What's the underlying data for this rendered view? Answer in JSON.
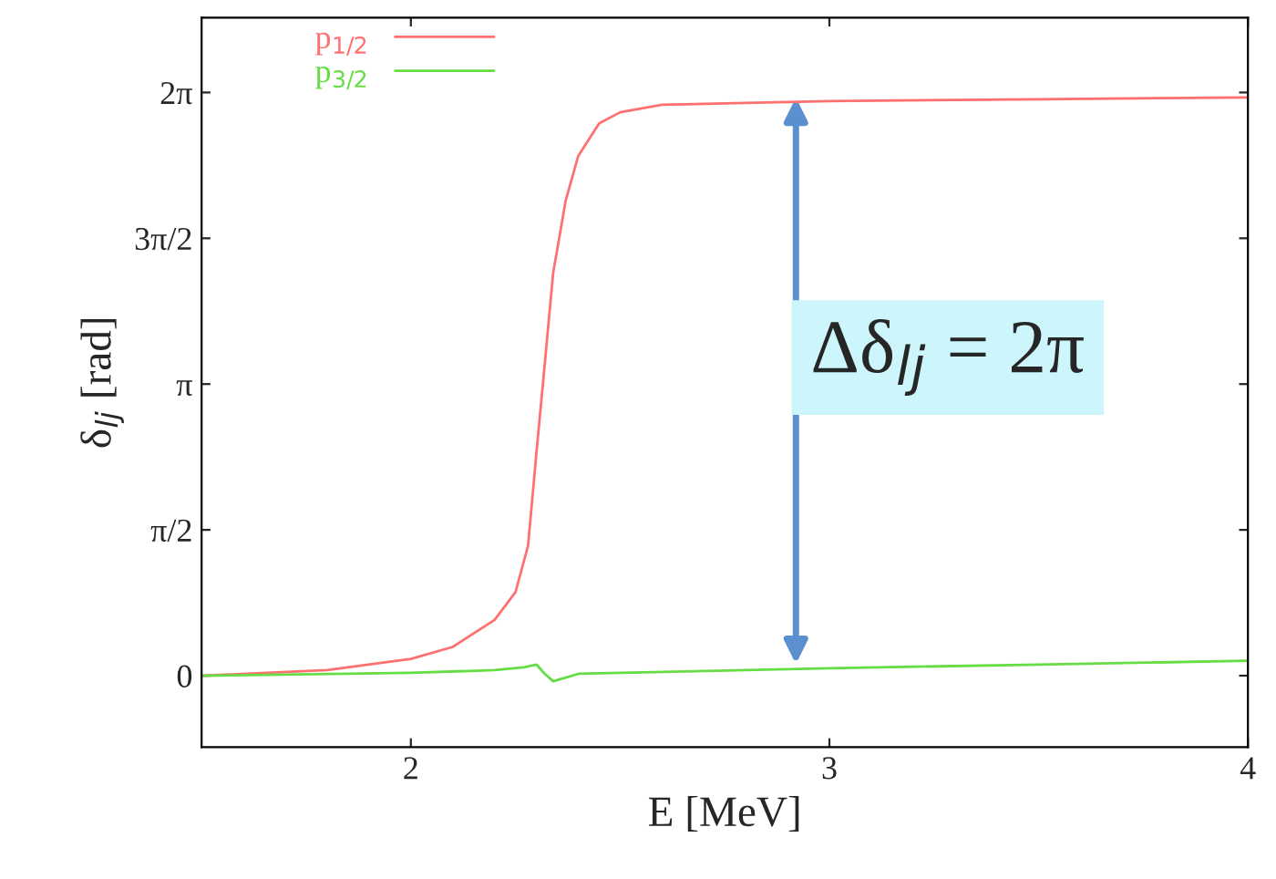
{
  "chart_data": {
    "type": "line",
    "xlabel": "E [MeV]",
    "ylabel": "δ$_{lj}$ [rad]",
    "xlim": [
      1.5,
      4
    ],
    "xticks": [
      2,
      3,
      4
    ],
    "ylim": [
      -0.77,
      7.09
    ],
    "yticks": [
      0,
      {
        "value": 1.5708,
        "label": "π/2"
      },
      {
        "value": 3.1416,
        "label": "π"
      },
      {
        "value": 4.7124,
        "label": "3π/2"
      },
      {
        "value": 6.2832,
        "label": "2π"
      }
    ],
    "series": [
      {
        "name": "p$_{1/2}$",
        "color": "#ff7070",
        "x": [
          1.5,
          1.8,
          2.0,
          2.1,
          2.2,
          2.25,
          2.28,
          2.3,
          2.32,
          2.34,
          2.37,
          2.4,
          2.45,
          2.5,
          2.6,
          2.8,
          3.0,
          3.5,
          4.0
        ],
        "values": [
          0.0,
          0.06,
          0.18,
          0.31,
          0.6,
          0.9,
          1.4,
          2.4,
          3.36,
          4.34,
          5.12,
          5.6,
          5.95,
          6.07,
          6.15,
          6.17,
          6.19,
          6.21,
          6.23
        ]
      },
      {
        "name": "p$_{3/2}$",
        "color": "#66dd44",
        "x": [
          1.5,
          2.0,
          2.2,
          2.27,
          2.3,
          2.32,
          2.34,
          2.37,
          2.4,
          3.0,
          3.5,
          4.0
        ],
        "values": [
          0.0,
          0.03,
          0.06,
          0.09,
          0.12,
          0.02,
          -0.06,
          -0.02,
          0.02,
          0.08,
          0.12,
          0.16
        ]
      }
    ],
    "annotations": [
      {
        "text": "Δδ$_{lj}$ = 2π",
        "x": 2.92,
        "y": 6.2832
      }
    ],
    "legend": "top left",
    "grid": false,
    "line_style": "solid",
    "marker": "none"
  }
}
